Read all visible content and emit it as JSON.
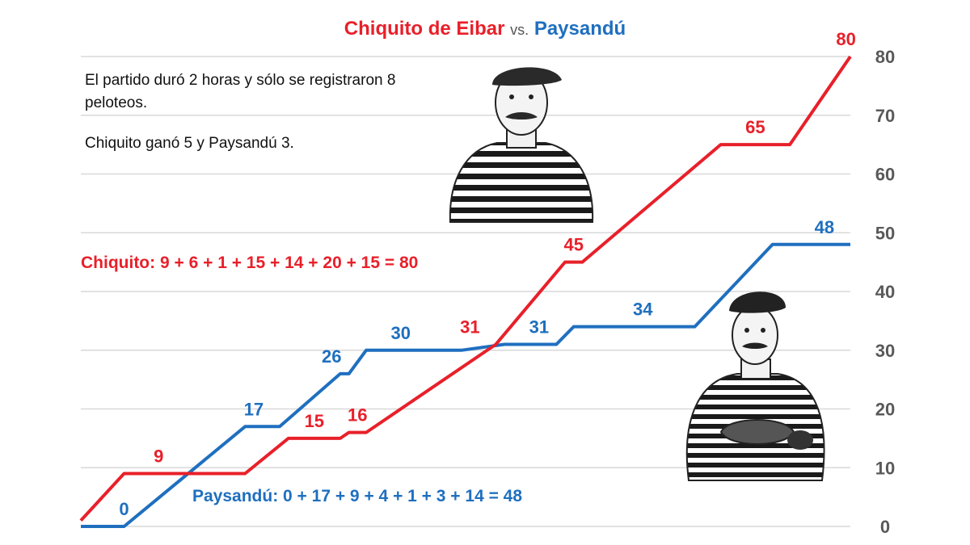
{
  "title": {
    "left": "Chiquito de Eibar",
    "vs": "vs.",
    "right": "Paysandú"
  },
  "notes": [
    "El partido duró 2 horas y sólo se registraron 8 peloteos.",
    "Chiquito ganó 5 y Paysandú 3."
  ],
  "formulas": {
    "chiquito": "Chiquito: 9 + 6 + 1 + 15 + 14 + 20 + 15 = 80",
    "paysandu": "Paysandú: 0 + 17 + 9 + 4 + 1 + 3 + 14 = 48"
  },
  "colors": {
    "chiquito": "#e8202a",
    "paysandu": "#1f6fbf",
    "grid": "#d9d9d9",
    "axis_text": "#595959"
  },
  "chart_data": {
    "type": "line",
    "title": "Chiquito de Eibar vs. Paysandú",
    "xlabel": "",
    "ylabel": "",
    "ylim": [
      0,
      80
    ],
    "yticks": [
      0,
      10,
      20,
      30,
      40,
      50,
      60,
      70,
      80
    ],
    "grid": true,
    "y_axis_side": "right",
    "series": [
      {
        "name": "Chiquito de Eibar",
        "color": "#e8202a",
        "points": [
          [
            0,
            1
          ],
          [
            5,
            9
          ],
          [
            19,
            9
          ],
          [
            24,
            15
          ],
          [
            30,
            15
          ],
          [
            31,
            16
          ],
          [
            33,
            16
          ],
          [
            48,
            31
          ],
          [
            56,
            45
          ],
          [
            58,
            45
          ],
          [
            74,
            65
          ],
          [
            82,
            65
          ],
          [
            89,
            80
          ]
        ],
        "labels": [
          {
            "x": 9,
            "y": 9,
            "text": "9"
          },
          {
            "x": 27,
            "y": 15,
            "text": "15"
          },
          {
            "x": 32,
            "y": 16,
            "text": "16"
          },
          {
            "x": 45,
            "y": 31,
            "text": "31"
          },
          {
            "x": 57,
            "y": 45,
            "text": "45"
          },
          {
            "x": 78,
            "y": 65,
            "text": "65"
          },
          {
            "x": 88.5,
            "y": 80,
            "text": "80"
          }
        ]
      },
      {
        "name": "Paysandú",
        "color": "#1f6fbf",
        "points": [
          [
            0,
            0
          ],
          [
            5,
            0
          ],
          [
            19,
            17
          ],
          [
            23,
            17
          ],
          [
            30,
            26
          ],
          [
            31,
            26
          ],
          [
            33,
            30
          ],
          [
            44,
            30
          ],
          [
            49,
            31
          ],
          [
            55,
            31
          ],
          [
            57,
            34
          ],
          [
            71,
            34
          ],
          [
            80,
            48
          ],
          [
            89,
            48
          ]
        ],
        "labels": [
          {
            "x": 5,
            "y": 0,
            "text": "0"
          },
          {
            "x": 20,
            "y": 17,
            "text": "17"
          },
          {
            "x": 29,
            "y": 26,
            "text": "26"
          },
          {
            "x": 37,
            "y": 30,
            "text": "30"
          },
          {
            "x": 53,
            "y": 31,
            "text": "31"
          },
          {
            "x": 65,
            "y": 34,
            "text": "34"
          },
          {
            "x": 86,
            "y": 48,
            "text": "48"
          }
        ]
      }
    ]
  }
}
